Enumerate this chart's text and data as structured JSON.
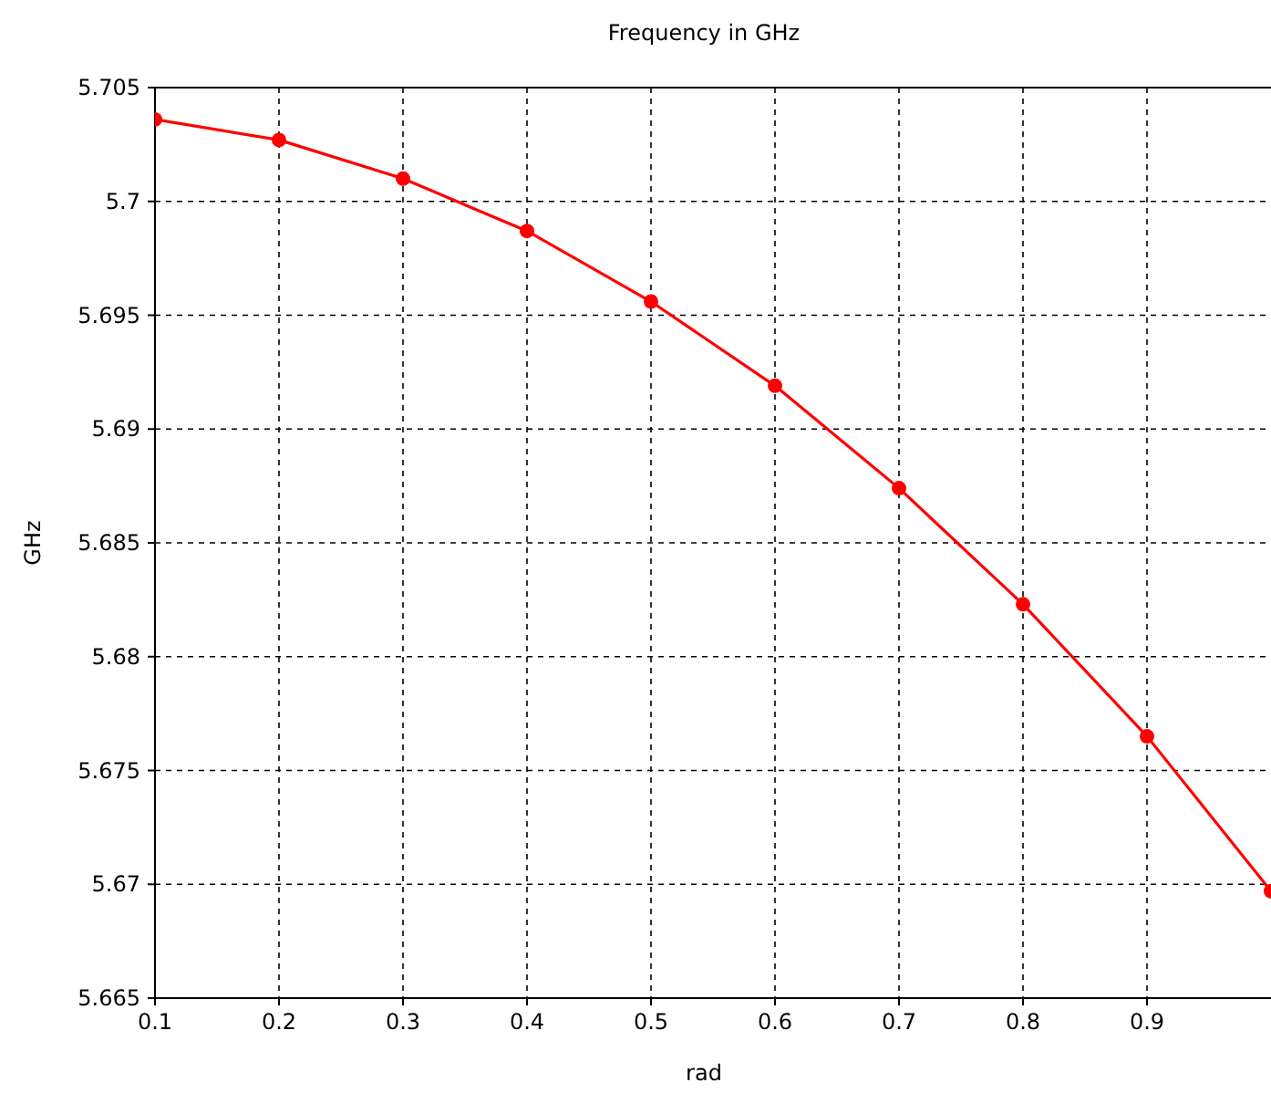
{
  "chart_data": {
    "type": "line",
    "title": "Frequency in GHz",
    "xlabel": "rad",
    "ylabel": "GHz",
    "x": [
      0.1,
      0.2,
      0.3,
      0.4,
      0.5,
      0.6,
      0.7,
      0.8,
      0.9,
      1.0
    ],
    "series": [
      {
        "color": "#ff0000",
        "values": [
          5.7036,
          5.7027,
          5.701,
          5.6987,
          5.6956,
          5.6919,
          5.6874,
          5.6823,
          5.6765,
          5.6697
        ]
      }
    ],
    "xlim": [
      0.1,
      1.0
    ],
    "xticks": [
      0.1,
      0.2,
      0.3,
      0.4,
      0.5,
      0.6,
      0.7,
      0.8,
      0.9
    ],
    "ylim": [
      5.665,
      5.705
    ],
    "yticks": [
      5.665,
      5.67,
      5.675,
      5.68,
      5.685,
      5.69,
      5.695,
      5.7,
      5.705
    ],
    "grid": true,
    "marker": "circle",
    "line_style": "solid"
  }
}
